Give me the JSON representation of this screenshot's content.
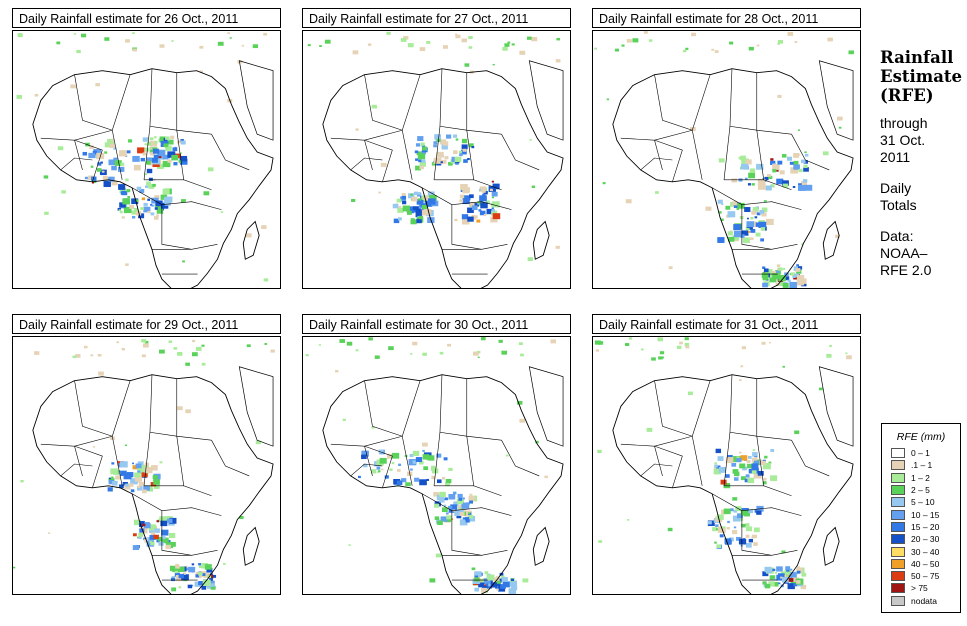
{
  "panels": [
    {
      "title": "Daily Rainfall estimate for  26 Oct., 2011",
      "pattern": "west-central"
    },
    {
      "title": "Daily Rainfall estimate for  27 Oct., 2011",
      "pattern": "central"
    },
    {
      "title": "Daily Rainfall estimate for  28 Oct., 2011",
      "pattern": "east-south"
    },
    {
      "title": "Daily Rainfall estimate for  29 Oct., 2011",
      "pattern": "west-south"
    },
    {
      "title": "Daily Rainfall estimate for  30 Oct., 2011",
      "pattern": "central-west"
    },
    {
      "title": "Daily Rainfall estimate for  31 Oct., 2011",
      "pattern": "central-south"
    }
  ],
  "side": {
    "heading": [
      "Rainfall",
      "Estimate",
      "(RFE)"
    ],
    "through_label": "through",
    "through_date_1": "31 Oct.",
    "through_date_2": "2011",
    "daily": "Daily",
    "totals": "Totals",
    "data_label": "Data:",
    "source_1": "NOAA–",
    "source_2": "RFE 2.0"
  },
  "legend": {
    "title": "RFE (mm)",
    "items": [
      {
        "label": "0 – 1",
        "color": "#ffffff"
      },
      {
        "label": ".1 – 1",
        "color": "#e6d2b4"
      },
      {
        "label": "1 – 2",
        "color": "#a8ec9a"
      },
      {
        "label": "2 – 5",
        "color": "#5ad25a"
      },
      {
        "label": "5 – 10",
        "color": "#96c8f0"
      },
      {
        "label": "10 – 15",
        "color": "#64a0f0"
      },
      {
        "label": "15 – 20",
        "color": "#3278e6"
      },
      {
        "label": "20 – 30",
        "color": "#1450c8"
      },
      {
        "label": "30 – 40",
        "color": "#ffdc64"
      },
      {
        "label": "40 – 50",
        "color": "#f0a028"
      },
      {
        "label": "50 – 75",
        "color": "#dc3c14"
      },
      {
        "label": "> 75",
        "color": "#a01414"
      },
      {
        "label": "nodata",
        "color": "#c8c8c8"
      }
    ]
  }
}
